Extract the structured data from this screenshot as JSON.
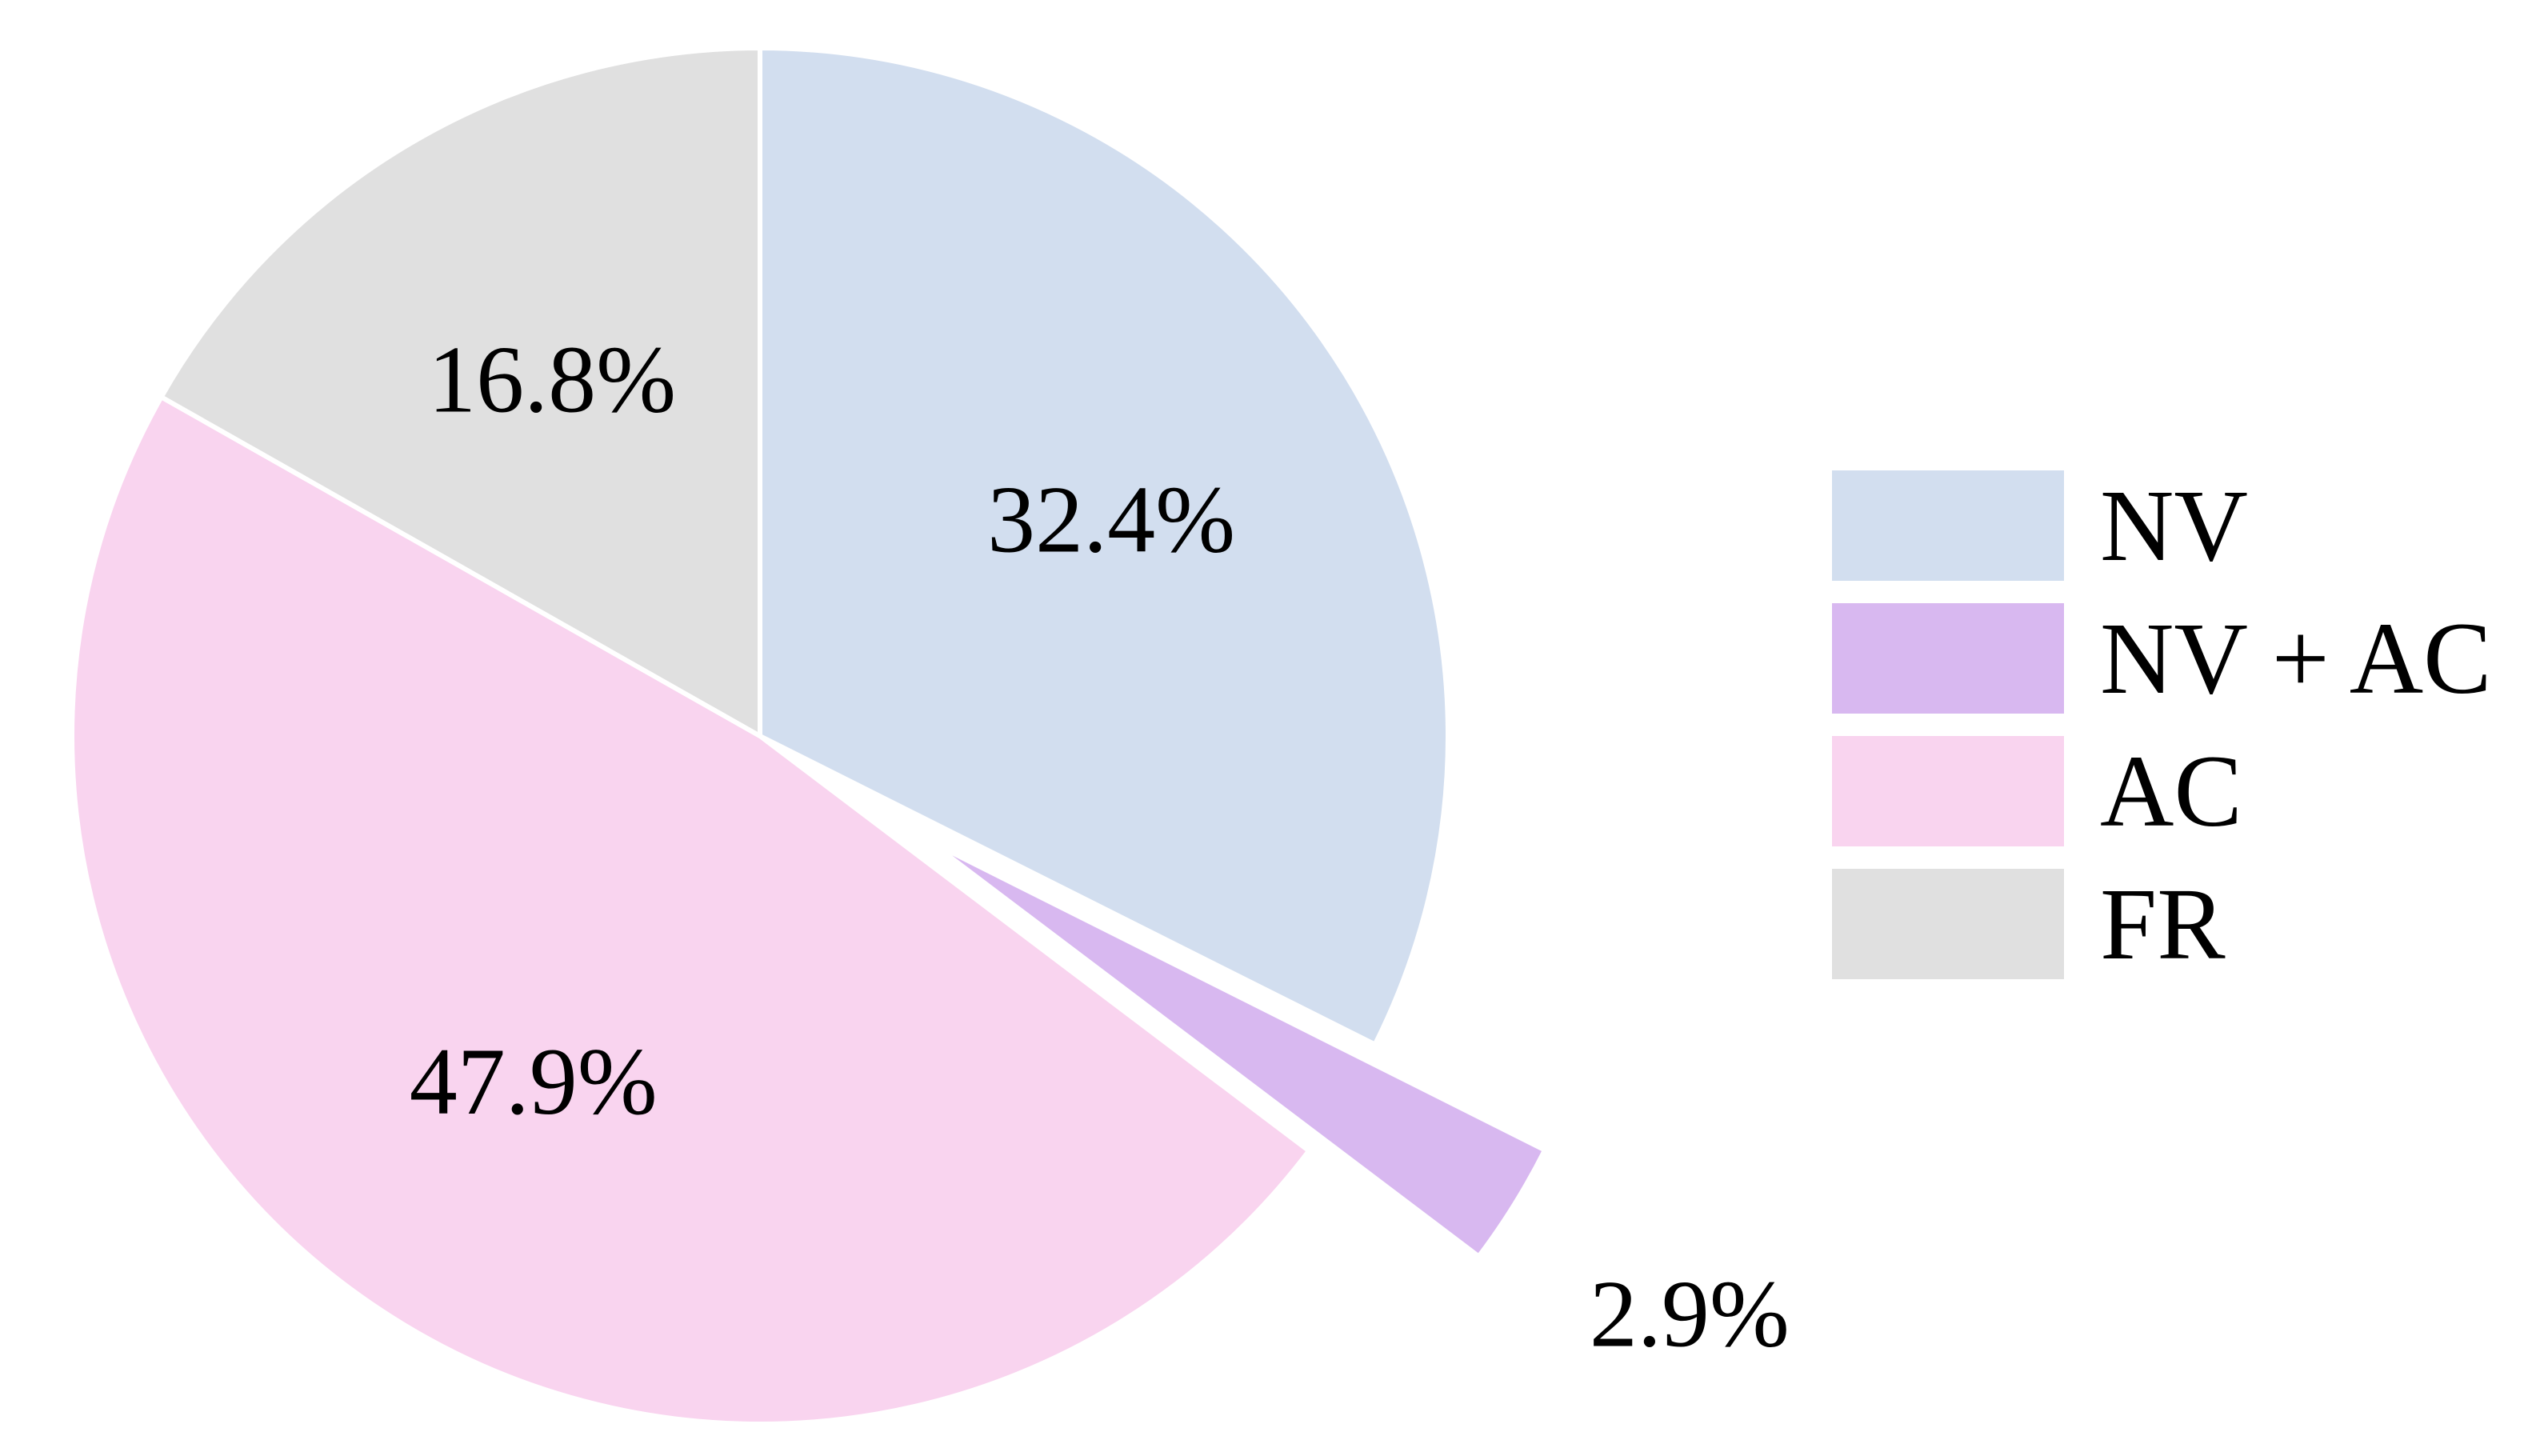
{
  "chart_data": {
    "type": "pie",
    "slices": [
      {
        "label": "NV",
        "value": 32.4,
        "value_label": "32.4%",
        "color": "#d2deef",
        "exploded": false
      },
      {
        "label": "NV + AC",
        "value": 2.9,
        "value_label": "2.9%",
        "color": "#d8b8f0",
        "exploded": true
      },
      {
        "label": "AC",
        "value": 47.9,
        "value_label": "47.9%",
        "color": "#f9d4ef",
        "exploded": false
      },
      {
        "label": "FR",
        "value": 16.8,
        "value_label": "16.8%",
        "color": "#e0e0e0",
        "exploded": false
      }
    ],
    "start_angle": "12 o'clock",
    "direction": "clockwise",
    "legend": {
      "position": "right",
      "entries": [
        "NV",
        "NV + AC",
        "AC",
        "FR"
      ]
    }
  }
}
